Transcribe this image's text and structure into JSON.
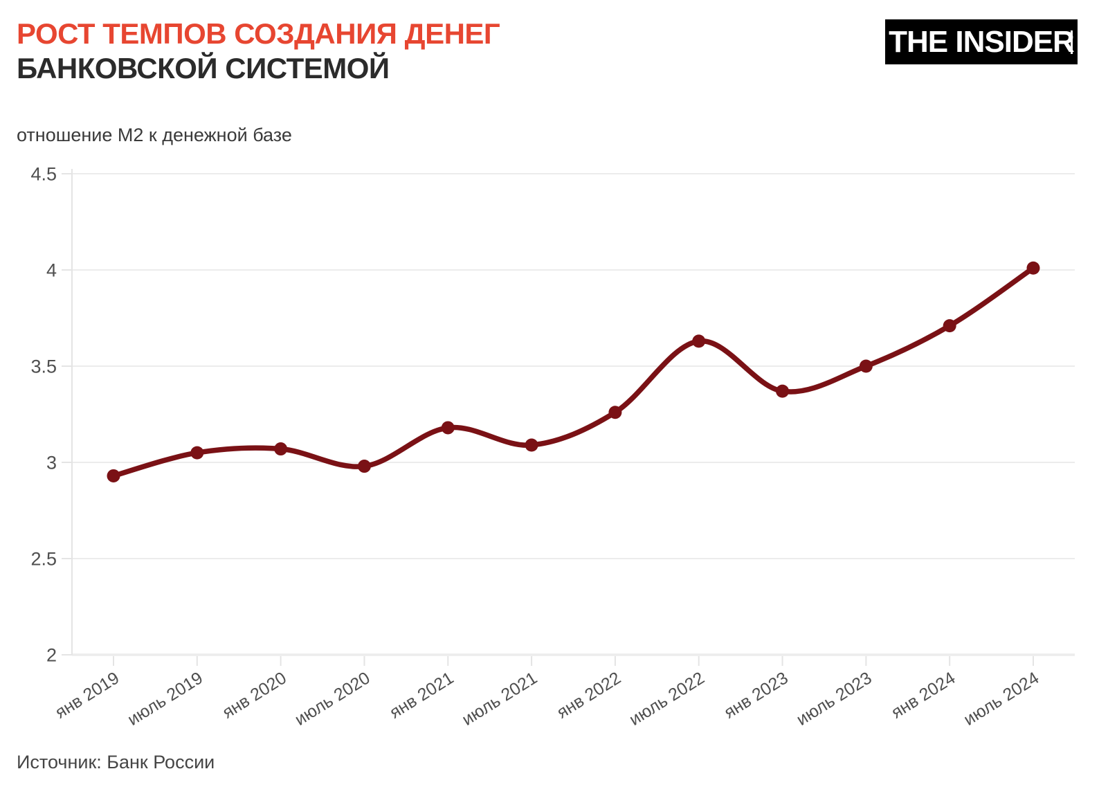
{
  "header": {
    "title_line1": "РОСТ ТЕМПОВ СОЗДАНИЯ ДЕНЕГ",
    "title_line2": "БАНКОВСКОЙ СИСТЕМОЙ",
    "logo_text": "THE INSIDER"
  },
  "footer": {
    "source": "Источник: Банк России"
  },
  "colors": {
    "accent_red": "#e74631",
    "title_dark": "#2b2b2b",
    "line": "#7a1115",
    "grid": "#ececec",
    "axis": "#e4e4e4",
    "tick_label": "#4f4f4f"
  },
  "chart_data": {
    "type": "line",
    "title": "РОСТ ТЕМПОВ СОЗДАНИЯ ДЕНЕГ БАНКОВСКОЙ СИСТЕМОЙ",
    "subtitle": "отношение М2 к денежной базе",
    "categories": [
      "янв 2019",
      "июль 2019",
      "янв 2020",
      "июль 2020",
      "янв 2021",
      "июль 2021",
      "янв 2022",
      "июль 2022",
      "янв 2023",
      "июль 2023",
      "янв 2024",
      "июль 2024"
    ],
    "values": [
      2.93,
      3.05,
      3.07,
      2.98,
      3.18,
      3.09,
      3.26,
      3.63,
      3.37,
      3.5,
      3.71,
      4.01
    ],
    "xlabel": "",
    "ylabel": "",
    "ylim": [
      2,
      4.5
    ],
    "yticks": [
      "2",
      "2.5",
      "3",
      "3.5",
      "4",
      "4.5"
    ],
    "grid": "horizontal",
    "legend": "none",
    "line_smooth": true,
    "source": "Источник: Банк России"
  }
}
